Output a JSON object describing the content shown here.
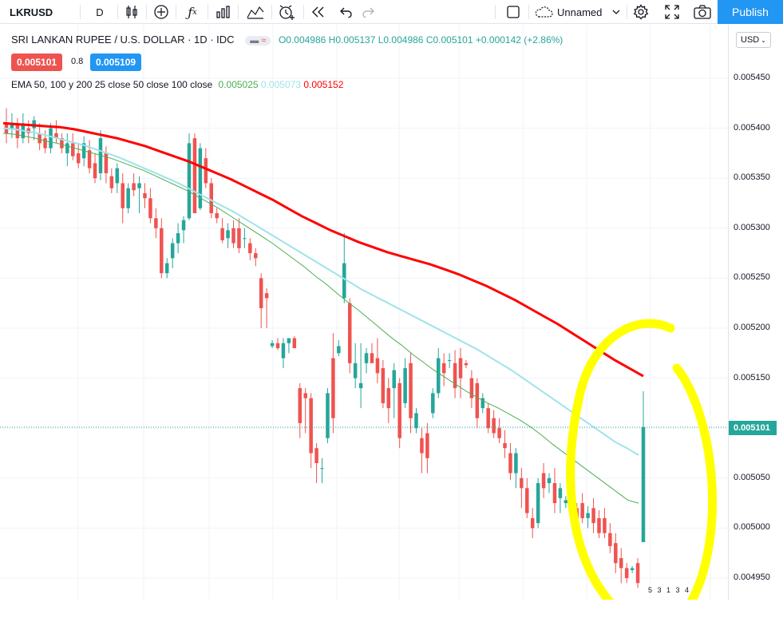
{
  "toolbar": {
    "symbol": "LKRUSD",
    "interval": "D",
    "candles_icon": "candles-icon",
    "compare_icon": "plus-circle-icon",
    "indicators_icon": "fx-icon",
    "bars_icon": "bars-icon",
    "templates_icon": "templates-icon",
    "alert_icon": "alarm-plus-icon",
    "replay_icon": "replay-icon",
    "undo_icon": "undo-icon",
    "redo_icon": "redo-icon",
    "layout_name": "Unnamed",
    "publish_label": "Publish"
  },
  "legend": {
    "title": "SRI LANKAN RUPEE / U.S. DOLLAR · 1D · IDC",
    "open": "O0.004986",
    "high": "H0.005137",
    "low": "L0.004986",
    "close": "C0.005101",
    "change": "+0.000142 (+2.86%)",
    "bid": "0.005101",
    "spread": "0.8",
    "ask": "0.005109",
    "ema_label": "EMA 50, 100 y 200 25 close 50 close 100 close",
    "ema1": "0.005025",
    "ema2": "0.005073",
    "ema3": "0.005152"
  },
  "axis": {
    "currency": "USD",
    "current_price": "0.005101",
    "bottom_right_text": "5 3 1 3 4"
  },
  "colors": {
    "up": "#26a69a",
    "down": "#ef5350",
    "ema1": "#4caf50",
    "ema2": "#9fe3ea",
    "ema3": "#ff0000",
    "highlight": "#ffff00",
    "accent": "#2196f3"
  },
  "chart_data": {
    "type": "candlestick",
    "title": "SRI LANKAN RUPEE / U.S. DOLLAR · 1D · IDC",
    "ylim": [
      0.004925,
      0.00555
    ],
    "y_ticks": [
      "0.005450",
      "0.005400",
      "0.005350",
      "0.005300",
      "0.005250",
      "0.005200",
      "0.005150",
      "0.005100",
      "0.005050",
      "0.005000",
      "0.004950"
    ],
    "grid": true,
    "candles": [
      [
        0.005405,
        0.00542,
        0.005385,
        0.005395
      ],
      [
        0.0054,
        0.005415,
        0.00539,
        0.005405
      ],
      [
        0.005405,
        0.00541,
        0.00538,
        0.00539
      ],
      [
        0.00539,
        0.005415,
        0.005385,
        0.005405
      ],
      [
        0.0054,
        0.005408,
        0.005385,
        0.005395
      ],
      [
        0.0054,
        0.005412,
        0.005388,
        0.005408
      ],
      [
        0.005395,
        0.005405,
        0.005378,
        0.005385
      ],
      [
        0.00539,
        0.005398,
        0.005375,
        0.00538
      ],
      [
        0.00538,
        0.005405,
        0.005375,
        0.0054
      ],
      [
        0.005395,
        0.005408,
        0.005385,
        0.00539
      ],
      [
        0.00539,
        0.005395,
        0.005375,
        0.00538
      ],
      [
        0.005375,
        0.005395,
        0.005362,
        0.005385
      ],
      [
        0.005385,
        0.005395,
        0.005368,
        0.005372
      ],
      [
        0.005375,
        0.005385,
        0.00536,
        0.005365
      ],
      [
        0.00537,
        0.005392,
        0.005362,
        0.005385
      ],
      [
        0.005378,
        0.005388,
        0.005355,
        0.00536
      ],
      [
        0.005365,
        0.005375,
        0.005345,
        0.00535
      ],
      [
        0.005355,
        0.005398,
        0.005348,
        0.00539
      ],
      [
        0.005375,
        0.005382,
        0.005345,
        0.005355
      ],
      [
        0.005352,
        0.00536,
        0.005335,
        0.00534
      ],
      [
        0.005345,
        0.005365,
        0.005335,
        0.00536
      ],
      [
        0.005345,
        0.005355,
        0.005305,
        0.00532
      ],
      [
        0.00532,
        0.005345,
        0.005315,
        0.00534
      ],
      [
        0.005345,
        0.005355,
        0.005332,
        0.005338
      ],
      [
        0.00534,
        0.005352,
        0.005315,
        0.005345
      ],
      [
        0.005335,
        0.005345,
        0.00532,
        0.00533
      ],
      [
        0.00533,
        0.00534,
        0.005305,
        0.00531
      ],
      [
        0.00531,
        0.00532,
        0.00529,
        0.0053
      ],
      [
        0.0053,
        0.00531,
        0.00525,
        0.005255
      ],
      [
        0.005255,
        0.00527,
        0.00525,
        0.005265
      ],
      [
        0.00527,
        0.00529,
        0.00526,
        0.005285
      ],
      [
        0.005285,
        0.005305,
        0.005275,
        0.005295
      ],
      [
        0.005298,
        0.005312,
        0.005285,
        0.005308
      ],
      [
        0.00531,
        0.005395,
        0.005308,
        0.005385
      ],
      [
        0.00539,
        0.005395,
        0.005315,
        0.005315
      ],
      [
        0.00532,
        0.005385,
        0.005318,
        0.00538
      ],
      [
        0.00537,
        0.00538,
        0.00534,
        0.005345
      ],
      [
        0.005345,
        0.00535,
        0.00531,
        0.005315
      ],
      [
        0.005315,
        0.00532,
        0.005305,
        0.00531
      ],
      [
        0.0053,
        0.00531,
        0.005285,
        0.005288
      ],
      [
        0.00529,
        0.005305,
        0.00528,
        0.005298
      ],
      [
        0.0053,
        0.005308,
        0.00528,
        0.005285
      ],
      [
        0.0053,
        0.00531,
        0.005275,
        0.00528
      ],
      [
        0.00529,
        0.0053,
        0.00528,
        0.00529
      ],
      [
        0.005285,
        0.00529,
        0.005268,
        0.005275
      ],
      [
        0.005275,
        0.00528,
        0.005262,
        0.00527
      ],
      [
        0.00525,
        0.005255,
        0.0052,
        0.00522
      ],
      [
        0.005235,
        0.00524,
        0.0052,
        0.00523
      ],
      [
        0.005182,
        0.005188,
        0.00518,
        0.005185
      ],
      [
        0.005185,
        0.00519,
        0.005178,
        0.00518
      ],
      [
        0.00517,
        0.00519,
        0.00516,
        0.005185
      ],
      [
        0.005185,
        0.00519,
        0.005175,
        0.00519
      ],
      [
        0.00519,
        0.005192,
        0.00518,
        0.00518
      ],
      [
        0.00514,
        0.005145,
        0.00509,
        0.005105
      ],
      [
        0.005135,
        0.00514,
        0.005095,
        0.00513
      ],
      [
        0.00513,
        0.005135,
        0.00506,
        0.005075
      ],
      [
        0.00508,
        0.005085,
        0.005045,
        0.005065
      ],
      [
        0.00506,
        0.00507,
        0.005045,
        0.00506
      ],
      [
        0.00509,
        0.00514,
        0.005085,
        0.005135
      ],
      [
        0.00517,
        0.005195,
        0.005095,
        0.00511
      ],
      [
        0.005175,
        0.005188,
        0.005172,
        0.005182
      ],
      [
        0.00523,
        0.005295,
        0.005225,
        0.005265
      ],
      [
        0.005225,
        0.00523,
        0.005155,
        0.005165
      ],
      [
        0.00515,
        0.005185,
        0.00514,
        0.005165
      ],
      [
        0.00514,
        0.005185,
        0.00512,
        0.005145
      ],
      [
        0.005165,
        0.00518,
        0.005155,
        0.005175
      ],
      [
        0.005175,
        0.005185,
        0.005165,
        0.005165
      ],
      [
        0.00517,
        0.00519,
        0.005145,
        0.005155
      ],
      [
        0.00516,
        0.005168,
        0.00512,
        0.005125
      ],
      [
        0.00514,
        0.00515,
        0.005105,
        0.00512
      ],
      [
        0.00514,
        0.005165,
        0.00511,
        0.005158
      ],
      [
        0.005145,
        0.00515,
        0.00508,
        0.00509
      ],
      [
        0.005125,
        0.00517,
        0.00512,
        0.00516
      ],
      [
        0.005165,
        0.005175,
        0.005095,
        0.00511
      ],
      [
        0.0051,
        0.00512,
        0.005095,
        0.005115
      ],
      [
        0.00509,
        0.0051,
        0.005055,
        0.005075
      ],
      [
        0.005095,
        0.005105,
        0.005055,
        0.00507
      ],
      [
        0.005115,
        0.00514,
        0.00511,
        0.005135
      ],
      [
        0.005135,
        0.00518,
        0.00513,
        0.00517
      ],
      [
        0.005165,
        0.005175,
        0.005142,
        0.005155
      ],
      [
        0.005168,
        0.005175,
        0.00516,
        0.005168
      ],
      [
        0.005165,
        0.005178,
        0.00513,
        0.00514
      ],
      [
        0.00517,
        0.00518,
        0.00513,
        0.00515
      ],
      [
        0.005165,
        0.005168,
        0.00516,
        0.005163
      ],
      [
        0.00515,
        0.005158,
        0.00512,
        0.00513
      ],
      [
        0.005145,
        0.00515,
        0.0051,
        0.00511
      ],
      [
        0.00512,
        0.005135,
        0.005115,
        0.00513
      ],
      [
        0.00512,
        0.005125,
        0.005095,
        0.0051
      ],
      [
        0.00511,
        0.005118,
        0.00509,
        0.005095
      ],
      [
        0.0051,
        0.00511,
        0.005085,
        0.00509
      ],
      [
        0.005085,
        0.005098,
        0.00507,
        0.00508
      ],
      [
        0.005075,
        0.005085,
        0.005048,
        0.005055
      ],
      [
        0.005055,
        0.00508,
        0.00504,
        0.005075
      ],
      [
        0.00505,
        0.00506,
        0.00502,
        0.00504
      ],
      [
        0.00504,
        0.00505,
        0.00501,
        0.005015
      ],
      [
        0.00501,
        0.00502,
        0.00499,
        0.005
      ],
      [
        0.005005,
        0.00505,
        0.005,
        0.005045
      ],
      [
        0.005055,
        0.005065,
        0.00503,
        0.00504
      ],
      [
        0.005045,
        0.005055,
        0.005035,
        0.00505
      ],
      [
        0.005045,
        0.00506,
        0.005015,
        0.005025
      ],
      [
        0.00503,
        0.005045,
        0.005015,
        0.00504
      ],
      [
        0.005025,
        0.005032,
        0.00502,
        0.005028
      ],
      [
        0.005025,
        0.00503,
        0.00501,
        0.005015
      ],
      [
        0.00502,
        0.005025,
        0.005,
        0.005005
      ],
      [
        0.005025,
        0.005035,
        0.005005,
        0.00501
      ],
      [
        0.00501,
        0.005022,
        0.005,
        0.005015
      ],
      [
        0.00502,
        0.00503,
        0.004995,
        0.005005
      ],
      [
        0.00501,
        0.005018,
        0.00499,
        0.004995
      ],
      [
        0.00501,
        0.00502,
        0.00499,
        0.004995
      ],
      [
        0.004995,
        0.005005,
        0.004975,
        0.004982
      ],
      [
        0.004985,
        0.004995,
        0.004955,
        0.004965
      ],
      [
        0.00497,
        0.00498,
        0.004945,
        0.00496
      ],
      [
        0.00496,
        0.004965,
        0.004945,
        0.00495
      ],
      [
        0.004958,
        0.004962,
        0.004955,
        0.00496
      ],
      [
        0.004965,
        0.00497,
        0.00494,
        0.004945
      ],
      [
        0.004986,
        0.005137,
        0.004986,
        0.005101
      ]
    ],
    "series": [
      {
        "name": "EMA 25",
        "values": [
          0.005395,
          0.005394,
          0.005392,
          0.00539,
          0.005387,
          0.005385,
          0.005382,
          0.005379,
          0.005376,
          0.005373,
          0.00537,
          0.005366,
          0.005362,
          0.005358,
          0.005353,
          0.005348,
          0.005343,
          0.005338,
          0.005332,
          0.005326,
          0.00532,
          0.005313,
          0.005306,
          0.005299,
          0.005292,
          0.005285,
          0.005277,
          0.005269,
          0.005261,
          0.005252,
          0.005244,
          0.005235,
          0.005226,
          0.005218,
          0.005209,
          0.0052,
          0.005191,
          0.005183,
          0.005174,
          0.005166,
          0.005158,
          0.005151,
          0.005144,
          0.005137,
          0.005131,
          0.005125,
          0.00512,
          0.005114,
          0.005108,
          0.005101,
          0.005093,
          0.005084,
          0.005076,
          0.005068,
          0.00506,
          0.005052,
          0.005044,
          0.005036,
          0.005028,
          0.005025
        ]
      },
      {
        "name": "EMA 50",
        "values": [
          0.0054,
          0.005399,
          0.005397,
          0.005395,
          0.005392,
          0.005389,
          0.005386,
          0.005383,
          0.005379,
          0.005375,
          0.005371,
          0.005366,
          0.005361,
          0.005356,
          0.005351,
          0.005346,
          0.00534,
          0.005334,
          0.005328,
          0.005322,
          0.005316,
          0.005309,
          0.005302,
          0.005295,
          0.005288,
          0.005281,
          0.005274,
          0.005267,
          0.00526,
          0.005253,
          0.005246,
          0.005239,
          0.005233,
          0.005227,
          0.005221,
          0.005215,
          0.005209,
          0.005203,
          0.005197,
          0.005191,
          0.005185,
          0.005179,
          0.005172,
          0.005165,
          0.005158,
          0.00515,
          0.005142,
          0.005134,
          0.005126,
          0.005118,
          0.00511,
          0.005102,
          0.005094,
          0.005086,
          0.00508,
          0.005073
        ]
      },
      {
        "name": "EMA 100",
        "values": [
          0.005405,
          0.005404,
          0.005403,
          0.005402,
          0.005401,
          0.005399,
          0.005396,
          0.005393,
          0.00539,
          0.005386,
          0.005382,
          0.005377,
          0.005372,
          0.005367,
          0.005361,
          0.005355,
          0.005349,
          0.005342,
          0.005335,
          0.005328,
          0.00532,
          0.005312,
          0.005305,
          0.005298,
          0.005292,
          0.005286,
          0.005281,
          0.005276,
          0.005272,
          0.005268,
          0.005264,
          0.005259,
          0.005254,
          0.005248,
          0.005242,
          0.005235,
          0.005228,
          0.00522,
          0.005212,
          0.005204,
          0.005195,
          0.005186,
          0.005177,
          0.005168,
          0.00516,
          0.005152
        ]
      }
    ]
  }
}
